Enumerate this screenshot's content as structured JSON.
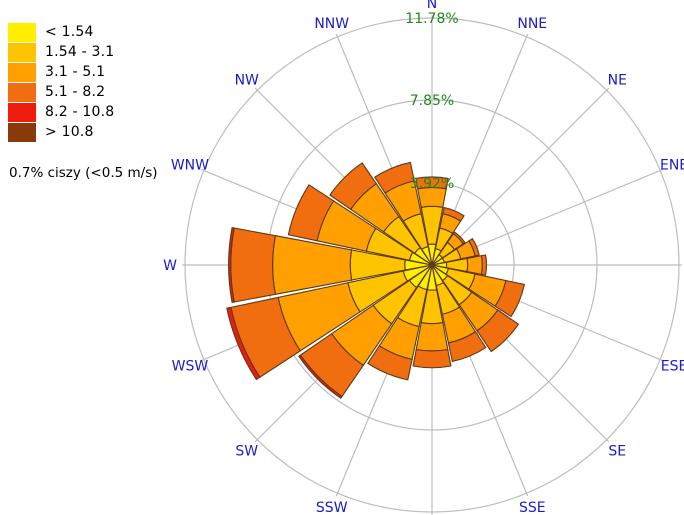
{
  "chart_data": {
    "type": "windrose",
    "directions": [
      "N",
      "NNE",
      "NE",
      "ENE",
      "E",
      "ESE",
      "SE",
      "SSE",
      "S",
      "SSW",
      "SW",
      "WSW",
      "W",
      "WNW",
      "NW",
      "NNW"
    ],
    "ring_labels": [
      "3.92%",
      "7.85%",
      "11.78%"
    ],
    "ring_values": [
      3.92,
      7.85,
      11.78
    ],
    "speed_bins": [
      {
        "label": "< 1.54",
        "color": "#ffee00"
      },
      {
        "label": "1.54 - 3.1",
        "color": "#ffc400"
      },
      {
        "label": "3.1 - 5.1",
        "color": "#ff9f00"
      },
      {
        "label": "5.1 - 8.2",
        "color": "#f06e10"
      },
      {
        "label": "8.2 - 10.8",
        "color": "#ee1c0c"
      },
      {
        "label": "> 10.8",
        "color": "#8a3a0a"
      }
    ],
    "values_cumulative_percent": {
      "N": [
        1.0,
        2.8,
        3.7,
        4.2,
        4.2,
        4.2
      ],
      "NNE": [
        0.8,
        1.8,
        2.5,
        2.8,
        2.8,
        2.8
      ],
      "NE": [
        0.6,
        1.3,
        1.8,
        1.9,
        1.9,
        1.9
      ],
      "ENE": [
        0.6,
        1.4,
        2.1,
        2.3,
        2.3,
        2.3
      ],
      "E": [
        0.7,
        1.7,
        2.4,
        2.6,
        2.6,
        2.6
      ],
      "ESE": [
        0.8,
        2.1,
        3.6,
        4.5,
        4.5,
        4.5
      ],
      "SE": [
        0.9,
        2.3,
        3.8,
        5.0,
        5.0,
        5.0
      ],
      "SSE": [
        1.0,
        2.4,
        3.8,
        4.7,
        4.7,
        4.7
      ],
      "S": [
        1.2,
        2.8,
        4.1,
        4.9,
        4.9,
        4.9
      ],
      "SSW": [
        1.2,
        3.0,
        4.6,
        5.6,
        5.6,
        5.6
      ],
      "SW": [
        1.3,
        3.4,
        5.8,
        7.6,
        7.7,
        7.7
      ],
      "WSW": [
        1.4,
        4.1,
        7.5,
        9.8,
        10.0,
        10.0
      ],
      "W": [
        1.3,
        3.9,
        7.6,
        9.6,
        9.7,
        9.7
      ],
      "WNW": [
        1.1,
        3.2,
        5.6,
        7.0,
        7.0,
        7.0
      ],
      "NW": [
        1.0,
        2.8,
        4.7,
        5.9,
        5.9,
        5.9
      ],
      "NNW": [
        0.9,
        2.5,
        4.1,
        5.0,
        5.0,
        5.0
      ]
    },
    "calm_text": "0.7% ciszy (<0.5 m/s)"
  },
  "colors": {
    "ring": "#bdbdbd",
    "spoke": "#bdbdbd",
    "direction_label": "#1b1bcc",
    "ring_label": "#1e8a1e",
    "outline": "#5a3a1a"
  }
}
